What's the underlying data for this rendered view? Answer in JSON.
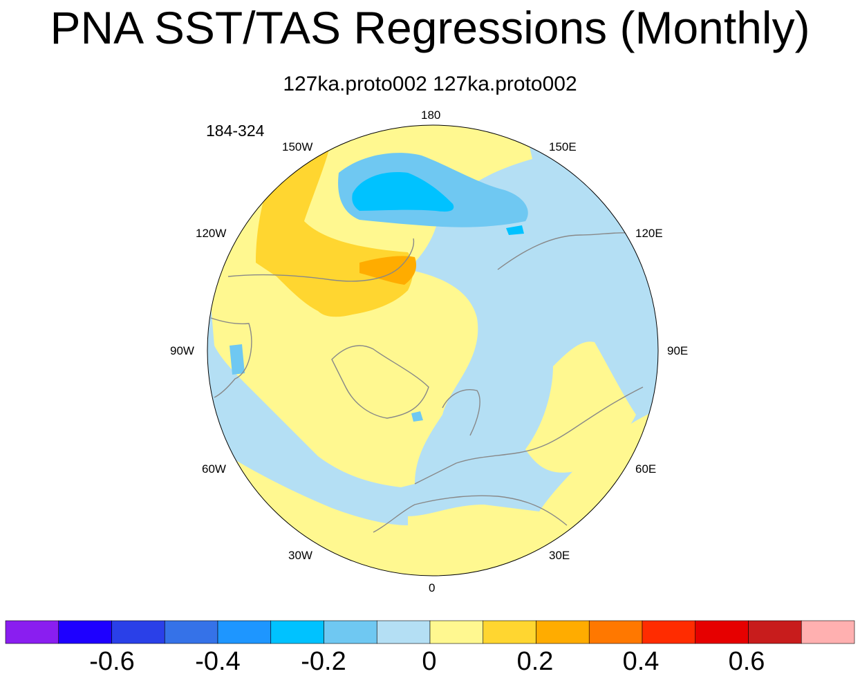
{
  "title": "PNA SST/TAS Regressions (Monthly)",
  "subtitle": "127ka.proto002  127ka.proto002",
  "years_label": "184-324",
  "longitude_labels": {
    "lon_180": "180",
    "lon_150e": "150E",
    "lon_120e": "120E",
    "lon_90e": "90E",
    "lon_60e": "60E",
    "lon_30e": "30E",
    "lon_0": "0",
    "lon_30w": "30W",
    "lon_60w": "60W",
    "lon_90w": "90W",
    "lon_120w": "120W",
    "lon_150w": "150W"
  },
  "colorbar": {
    "colors": [
      "#8a1ef0",
      "#1e00ff",
      "#2a40e8",
      "#3572e8",
      "#1e96ff",
      "#00c2ff",
      "#6fc8f2",
      "#b4dff4",
      "#fff890",
      "#ffd630",
      "#ffac00",
      "#ff7800",
      "#ff2c00",
      "#e60000",
      "#c81c1c",
      "#ffb0b0"
    ],
    "labels": [
      "-0.6",
      "-0.4",
      "-0.2",
      "0",
      "0.2",
      "0.4",
      "0.6"
    ]
  },
  "land_color": "#ffffff",
  "coast_color": "#888888"
}
